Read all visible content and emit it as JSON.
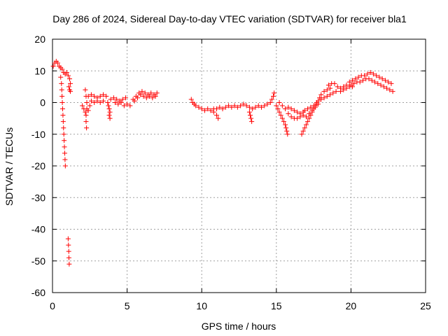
{
  "chart_data": {
    "type": "scatter",
    "title": "Day 286 of 2024, Sidereal Day-to-day VTEC variation (SDTVAR) for receiver bla1",
    "xlabel": "GPS time / hours",
    "ylabel": "SDTVAR / TECUs",
    "xlim": [
      0,
      25
    ],
    "ylim": [
      -60,
      20
    ],
    "xticks": [
      0,
      5,
      10,
      15,
      20,
      25
    ],
    "yticks": [
      -60,
      -50,
      -40,
      -30,
      -20,
      -10,
      0,
      10,
      20
    ],
    "grid": true,
    "marker": "plus",
    "series_color": "#ff0000",
    "series": [
      {
        "name": "bla1",
        "points": [
          [
            0.05,
            11.5
          ],
          [
            0.15,
            12.5
          ],
          [
            0.25,
            13.0
          ],
          [
            0.35,
            12.5
          ],
          [
            0.45,
            11.5
          ],
          [
            0.55,
            11.0
          ],
          [
            0.65,
            10.5
          ],
          [
            0.75,
            9.5
          ],
          [
            0.85,
            9.0
          ],
          [
            0.95,
            9.5
          ],
          [
            1.05,
            8.5
          ],
          [
            1.15,
            7.5
          ],
          [
            1.2,
            6.0
          ],
          [
            1.1,
            5.0
          ],
          [
            1.15,
            4.0
          ],
          [
            1.2,
            3.5
          ],
          [
            0.55,
            8.0
          ],
          [
            0.6,
            6.0
          ],
          [
            0.62,
            4.0
          ],
          [
            0.64,
            2.0
          ],
          [
            0.66,
            0.0
          ],
          [
            0.68,
            -2.0
          ],
          [
            0.7,
            -4.0
          ],
          [
            0.72,
            -6.0
          ],
          [
            0.74,
            -8.0
          ],
          [
            0.76,
            -10.0
          ],
          [
            0.78,
            -12.0
          ],
          [
            0.8,
            -14.0
          ],
          [
            0.82,
            -16.0
          ],
          [
            0.84,
            -18.0
          ],
          [
            0.86,
            -20.0
          ],
          [
            1.05,
            -43.0
          ],
          [
            1.07,
            -45.0
          ],
          [
            1.09,
            -47.0
          ],
          [
            1.1,
            -49.0
          ],
          [
            1.12,
            -51.0
          ],
          [
            2.2,
            4.0
          ],
          [
            2.25,
            2.0
          ],
          [
            2.3,
            0.0
          ],
          [
            2.3,
            -2.0
          ],
          [
            2.25,
            -4.0
          ],
          [
            2.25,
            -6.0
          ],
          [
            2.28,
            -8.0
          ],
          [
            2.0,
            -1.0
          ],
          [
            2.1,
            -2.0
          ],
          [
            2.2,
            -3.0
          ],
          [
            2.4,
            -2.5
          ],
          [
            2.5,
            -1.0
          ],
          [
            2.4,
            2.0
          ],
          [
            2.6,
            2.5
          ],
          [
            2.8,
            2.0
          ],
          [
            3.0,
            1.5
          ],
          [
            3.2,
            2.0
          ],
          [
            3.4,
            2.5
          ],
          [
            3.6,
            2.0
          ],
          [
            2.6,
            0.5
          ],
          [
            2.8,
            0.0
          ],
          [
            3.0,
            0.5
          ],
          [
            3.2,
            0.0
          ],
          [
            3.4,
            0.5
          ],
          [
            3.7,
            0.0
          ],
          [
            3.75,
            -1.0
          ],
          [
            3.8,
            -2.0
          ],
          [
            3.85,
            -3.0
          ],
          [
            3.8,
            -4.0
          ],
          [
            3.85,
            -5.0
          ],
          [
            3.9,
            1.0
          ],
          [
            4.1,
            1.5
          ],
          [
            4.3,
            1.0
          ],
          [
            4.5,
            0.5
          ],
          [
            4.7,
            1.0
          ],
          [
            4.9,
            1.5
          ],
          [
            4.2,
            0.0
          ],
          [
            4.4,
            -0.5
          ],
          [
            4.6,
            0.0
          ],
          [
            4.8,
            -1.0
          ],
          [
            5.0,
            -0.5
          ],
          [
            5.2,
            -1.0
          ],
          [
            5.4,
            1.0
          ],
          [
            5.6,
            2.0
          ],
          [
            5.8,
            3.0
          ],
          [
            6.0,
            3.5
          ],
          [
            6.2,
            3.0
          ],
          [
            6.4,
            2.5
          ],
          [
            5.5,
            0.5
          ],
          [
            5.7,
            1.5
          ],
          [
            5.9,
            2.5
          ],
          [
            6.1,
            2.0
          ],
          [
            6.3,
            1.5
          ],
          [
            6.5,
            2.0
          ],
          [
            6.6,
            3.0
          ],
          [
            6.8,
            2.5
          ],
          [
            7.0,
            3.0
          ],
          [
            6.7,
            1.5
          ],
          [
            6.9,
            2.0
          ],
          [
            9.3,
            1.0
          ],
          [
            9.4,
            0.0
          ],
          [
            9.5,
            -0.5
          ],
          [
            9.6,
            -1.0
          ],
          [
            9.8,
            -1.5
          ],
          [
            10.0,
            -2.0
          ],
          [
            10.2,
            -2.5
          ],
          [
            10.4,
            -2.0
          ],
          [
            10.6,
            -2.5
          ],
          [
            10.8,
            -2.0
          ],
          [
            11.0,
            -2.0
          ],
          [
            11.2,
            -1.5
          ],
          [
            11.4,
            -2.0
          ],
          [
            11.6,
            -1.5
          ],
          [
            11.8,
            -1.0
          ],
          [
            12.0,
            -1.5
          ],
          [
            12.2,
            -1.0
          ],
          [
            12.4,
            -1.5
          ],
          [
            12.6,
            -1.0
          ],
          [
            12.8,
            -0.5
          ],
          [
            13.0,
            -1.0
          ],
          [
            13.2,
            -1.5
          ],
          [
            13.4,
            -2.0
          ],
          [
            13.6,
            -1.5
          ],
          [
            13.8,
            -1.0
          ],
          [
            14.0,
            -1.5
          ],
          [
            14.2,
            -1.0
          ],
          [
            14.4,
            -0.5
          ],
          [
            14.6,
            0.0
          ],
          [
            14.7,
            1.0
          ],
          [
            14.8,
            2.0
          ],
          [
            14.85,
            3.0
          ],
          [
            13.2,
            -3.0
          ],
          [
            13.25,
            -4.0
          ],
          [
            13.3,
            -5.0
          ],
          [
            13.35,
            -6.0
          ],
          [
            10.8,
            -3.0
          ],
          [
            11.0,
            -4.0
          ],
          [
            11.1,
            -5.0
          ],
          [
            15.0,
            -1.0
          ],
          [
            15.1,
            -2.0
          ],
          [
            15.2,
            -3.0
          ],
          [
            15.3,
            -4.0
          ],
          [
            15.4,
            -5.0
          ],
          [
            15.5,
            -6.0
          ],
          [
            15.6,
            -7.0
          ],
          [
            15.65,
            -8.0
          ],
          [
            15.7,
            -9.0
          ],
          [
            15.75,
            -10.0
          ],
          [
            15.2,
            0.0
          ],
          [
            15.4,
            -1.0
          ],
          [
            15.6,
            -2.0
          ],
          [
            15.8,
            -3.5
          ],
          [
            16.0,
            -4.5
          ],
          [
            16.2,
            -5.0
          ],
          [
            16.4,
            -5.0
          ],
          [
            16.6,
            -4.5
          ],
          [
            16.8,
            -4.0
          ],
          [
            15.8,
            -1.5
          ],
          [
            16.0,
            -2.0
          ],
          [
            16.2,
            -2.5
          ],
          [
            16.4,
            -3.0
          ],
          [
            16.6,
            -3.5
          ],
          [
            16.8,
            -3.0
          ],
          [
            16.7,
            -10.0
          ],
          [
            16.8,
            -9.0
          ],
          [
            16.9,
            -8.0
          ],
          [
            17.0,
            -7.0
          ],
          [
            17.1,
            -6.0
          ],
          [
            17.2,
            -5.0
          ],
          [
            17.3,
            -4.0
          ],
          [
            17.4,
            -3.0
          ],
          [
            17.5,
            -2.0
          ],
          [
            17.6,
            -1.0
          ],
          [
            17.7,
            0.0
          ],
          [
            16.9,
            -2.5
          ],
          [
            17.1,
            -2.0
          ],
          [
            17.3,
            -1.5
          ],
          [
            17.5,
            -1.0
          ],
          [
            17.7,
            -0.5
          ],
          [
            17.0,
            -4.5
          ],
          [
            17.2,
            -3.5
          ],
          [
            17.4,
            -2.5
          ],
          [
            17.6,
            -1.5
          ],
          [
            17.8,
            -0.5
          ],
          [
            17.8,
            0.5
          ],
          [
            17.9,
            1.5
          ],
          [
            18.0,
            2.5
          ],
          [
            18.2,
            3.5
          ],
          [
            18.4,
            4.0
          ],
          [
            18.6,
            4.5
          ],
          [
            18.0,
            1.0
          ],
          [
            18.2,
            1.5
          ],
          [
            18.4,
            2.0
          ],
          [
            18.6,
            2.5
          ],
          [
            18.8,
            3.0
          ],
          [
            19.0,
            3.5
          ],
          [
            18.5,
            5.5
          ],
          [
            18.7,
            6.0
          ],
          [
            18.9,
            6.0
          ],
          [
            19.1,
            5.0
          ],
          [
            19.3,
            4.5
          ],
          [
            19.5,
            5.0
          ],
          [
            19.7,
            5.5
          ],
          [
            19.9,
            6.5
          ],
          [
            20.1,
            7.0
          ],
          [
            20.3,
            7.5
          ],
          [
            20.5,
            8.0
          ],
          [
            20.7,
            8.5
          ],
          [
            20.9,
            8.5
          ],
          [
            21.1,
            9.0
          ],
          [
            21.3,
            9.5
          ],
          [
            21.5,
            9.0
          ],
          [
            21.7,
            8.5
          ],
          [
            21.9,
            8.0
          ],
          [
            22.1,
            7.5
          ],
          [
            22.3,
            7.0
          ],
          [
            22.5,
            6.5
          ],
          [
            22.7,
            6.0
          ],
          [
            20.0,
            5.5
          ],
          [
            20.2,
            6.0
          ],
          [
            20.4,
            6.5
          ],
          [
            20.6,
            6.5
          ],
          [
            20.8,
            7.0
          ],
          [
            21.0,
            7.5
          ],
          [
            21.2,
            7.5
          ],
          [
            21.4,
            7.0
          ],
          [
            21.6,
            6.5
          ],
          [
            21.8,
            6.0
          ],
          [
            22.0,
            5.5
          ],
          [
            22.2,
            5.0
          ],
          [
            22.4,
            4.5
          ],
          [
            22.6,
            4.0
          ],
          [
            22.8,
            3.5
          ],
          [
            19.3,
            3.5
          ],
          [
            19.5,
            4.0
          ],
          [
            19.7,
            4.5
          ],
          [
            19.9,
            5.0
          ],
          [
            20.1,
            5.0
          ]
        ]
      }
    ]
  }
}
